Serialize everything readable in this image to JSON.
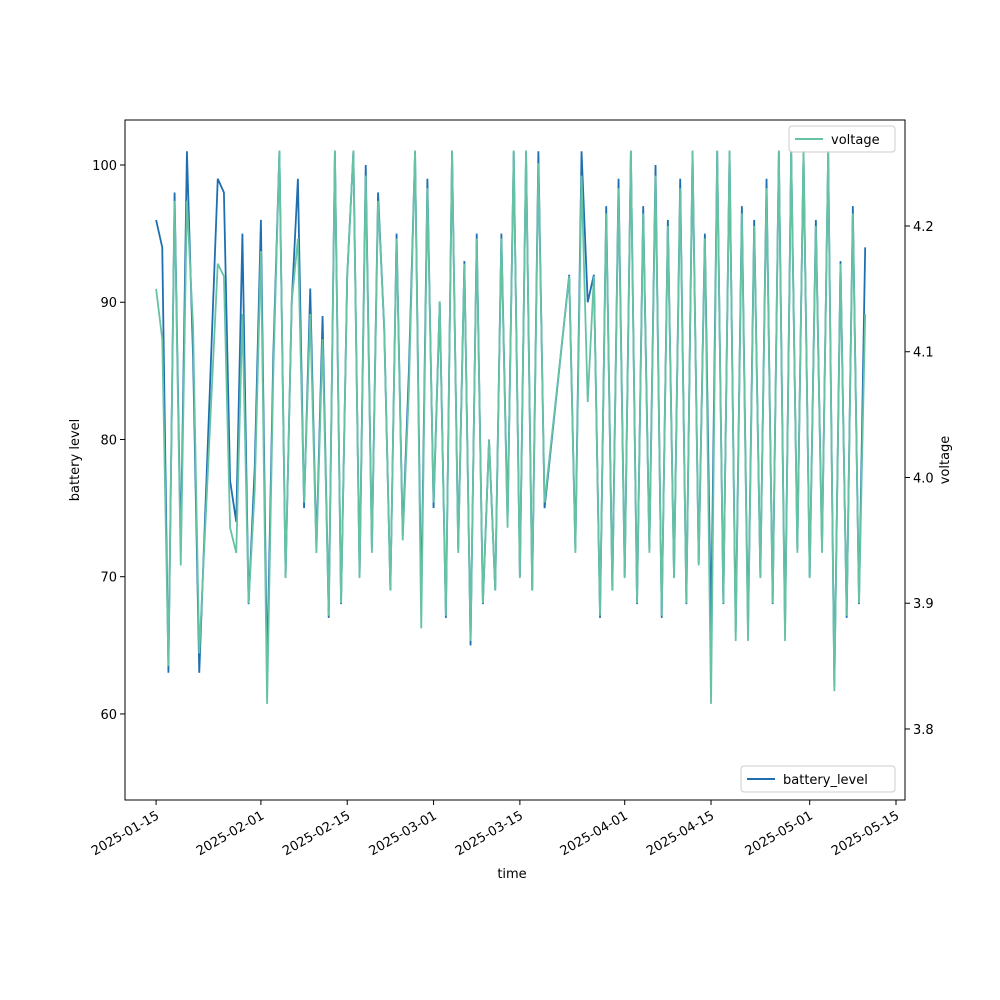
{
  "chart_data": {
    "type": "line",
    "xlabel": "time",
    "ylabel": "battery level",
    "y2label": "voltage",
    "x": [
      "2025-01-15",
      "2025-01-16",
      "2025-01-17",
      "2025-01-18",
      "2025-01-19",
      "2025-01-20",
      "2025-01-21",
      "2025-01-22",
      "2025-01-25",
      "2025-01-26",
      "2025-01-27",
      "2025-01-28",
      "2025-01-29",
      "2025-01-30",
      "2025-01-31",
      "2025-02-01",
      "2025-02-02",
      "2025-02-03",
      "2025-02-04",
      "2025-02-05",
      "2025-02-06",
      "2025-02-07",
      "2025-02-08",
      "2025-02-09",
      "2025-02-10",
      "2025-02-11",
      "2025-02-12",
      "2025-02-13",
      "2025-02-14",
      "2025-02-15",
      "2025-02-16",
      "2025-02-17",
      "2025-02-18",
      "2025-02-19",
      "2025-02-20",
      "2025-02-21",
      "2025-02-22",
      "2025-02-23",
      "2025-02-24",
      "2025-02-25",
      "2025-02-26",
      "2025-02-27",
      "2025-02-28",
      "2025-03-01",
      "2025-03-02",
      "2025-03-03",
      "2025-03-04",
      "2025-03-05",
      "2025-03-06",
      "2025-03-07",
      "2025-03-08",
      "2025-03-09",
      "2025-03-10",
      "2025-03-11",
      "2025-03-12",
      "2025-03-13",
      "2025-03-14",
      "2025-03-15",
      "2025-03-16",
      "2025-03-17",
      "2025-03-18",
      "2025-03-19",
      "2025-03-23",
      "2025-03-24",
      "2025-03-25",
      "2025-03-26",
      "2025-03-27",
      "2025-03-28",
      "2025-03-29",
      "2025-03-30",
      "2025-03-31",
      "2025-04-01",
      "2025-04-02",
      "2025-04-03",
      "2025-04-04",
      "2025-04-05",
      "2025-04-06",
      "2025-04-07",
      "2025-04-08",
      "2025-04-09",
      "2025-04-10",
      "2025-04-11",
      "2025-04-12",
      "2025-04-13",
      "2025-04-14",
      "2025-04-15",
      "2025-04-16",
      "2025-04-17",
      "2025-04-18",
      "2025-04-19",
      "2025-04-20",
      "2025-04-21",
      "2025-04-22",
      "2025-04-23",
      "2025-04-24",
      "2025-04-25",
      "2025-04-26",
      "2025-04-27",
      "2025-04-28",
      "2025-04-29",
      "2025-04-30",
      "2025-05-01",
      "2025-05-02",
      "2025-05-03",
      "2025-05-04",
      "2025-05-05",
      "2025-05-06",
      "2025-05-07",
      "2025-05-08",
      "2025-05-09",
      "2025-05-10"
    ],
    "series": [
      {
        "name": "battery_level",
        "color": "#1f6fb0",
        "axis": "y",
        "values": [
          96,
          94,
          63,
          98,
          72,
          101,
          86,
          63,
          99,
          98,
          77,
          74,
          95,
          68,
          78,
          96,
          63,
          86,
          101,
          70,
          90,
          99,
          75,
          91,
          72,
          89,
          67,
          101,
          68,
          92,
          101,
          70,
          100,
          72,
          98,
          88,
          69,
          95,
          73,
          85,
          101,
          68,
          99,
          75,
          90,
          67,
          101,
          72,
          93,
          65,
          95,
          68,
          80,
          69,
          95,
          74,
          101,
          70,
          101,
          69,
          101,
          75,
          92,
          72,
          101,
          90,
          92,
          67,
          97,
          69,
          99,
          70,
          101,
          68,
          97,
          72,
          100,
          67,
          96,
          70,
          99,
          68,
          101,
          71,
          95,
          66,
          101,
          68,
          101,
          66,
          97,
          66,
          96,
          70,
          99,
          68,
          101,
          66,
          101,
          72,
          101,
          70,
          96,
          72,
          101,
          62,
          93,
          67,
          97,
          68,
          94
        ]
      },
      {
        "name": "voltage",
        "color": "#66c2a5",
        "axis": "y2",
        "values": [
          4.15,
          4.11,
          3.85,
          4.22,
          3.93,
          4.22,
          4.12,
          3.86,
          4.17,
          4.16,
          3.96,
          3.94,
          4.13,
          3.9,
          3.99,
          4.18,
          3.82,
          4.08,
          4.26,
          3.92,
          4.14,
          4.19,
          3.98,
          4.13,
          3.94,
          4.11,
          3.89,
          4.26,
          3.9,
          4.16,
          4.26,
          3.92,
          4.24,
          3.94,
          4.22,
          4.12,
          3.91,
          4.19,
          3.95,
          4.07,
          4.26,
          3.88,
          4.23,
          3.98,
          4.14,
          3.89,
          4.26,
          3.94,
          4.17,
          3.87,
          4.19,
          3.9,
          4.03,
          3.91,
          4.19,
          3.96,
          4.26,
          3.92,
          4.26,
          3.91,
          4.25,
          3.98,
          4.16,
          3.94,
          4.24,
          4.06,
          4.16,
          3.89,
          4.21,
          3.91,
          4.23,
          3.92,
          4.26,
          3.9,
          4.21,
          3.94,
          4.24,
          3.89,
          4.2,
          3.92,
          4.23,
          3.9,
          4.26,
          3.93,
          4.19,
          3.82,
          4.26,
          3.9,
          4.26,
          3.87,
          4.21,
          3.87,
          4.2,
          3.92,
          4.23,
          3.9,
          4.26,
          3.87,
          4.26,
          3.94,
          4.26,
          3.92,
          4.2,
          3.94,
          4.26,
          3.83,
          4.17,
          3.89,
          4.21,
          3.9,
          4.13
        ]
      }
    ],
    "xlim": [
      "2025-01-09T23:00",
      "2025-05-16T11:00"
    ],
    "xticks": [
      "2025-01-15",
      "2025-02-01",
      "2025-02-15",
      "2025-03-01",
      "2025-03-15",
      "2025-04-01",
      "2025-04-15",
      "2025-05-01",
      "2025-05-15"
    ],
    "ylim": [
      53.73,
      103.28
    ],
    "yticks": [
      60,
      70,
      80,
      90,
      100
    ],
    "y2lim": [
      3.7435,
      4.2843
    ],
    "y2ticks": [
      3.8,
      3.9,
      {
        "value": 4,
        "label": "4.0"
      },
      4.1,
      4.2
    ],
    "legend": {
      "y": "lower right",
      "y2": "upper right"
    }
  }
}
